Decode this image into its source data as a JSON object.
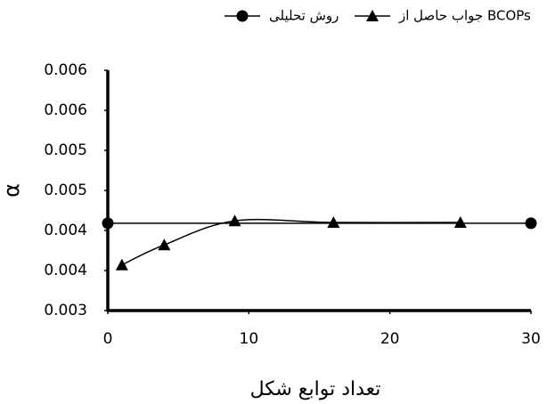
{
  "chart_data": {
    "type": "line",
    "x_label": "تعداد توابع شکل",
    "y_label": "α",
    "xlim": [
      0,
      30
    ],
    "xticks": [
      0,
      10,
      20,
      30
    ],
    "ylim": [
      0.003,
      0.006
    ],
    "yticks": [
      0.003,
      {
        "value": 0.0035,
        "label": "0.004"
      },
      0.004,
      {
        "value": 0.0045,
        "label": "0.005"
      },
      0.005,
      {
        "value": 0.0055,
        "label": "0.006"
      },
      0.006
    ],
    "series": [
      {
        "name": "روش تحلیلی",
        "color": "#000000",
        "marker": "circle",
        "x": [
          0,
          30
        ],
        "values": [
          0.00409,
          0.00409
        ]
      },
      {
        "name": "جواب حاصل از BCOPs",
        "color": "#000000",
        "marker": "triangle",
        "x": [
          1,
          4,
          9,
          16,
          25
        ],
        "values": [
          0.00357,
          0.00382,
          0.00412,
          0.0041,
          0.0041
        ]
      }
    ]
  }
}
